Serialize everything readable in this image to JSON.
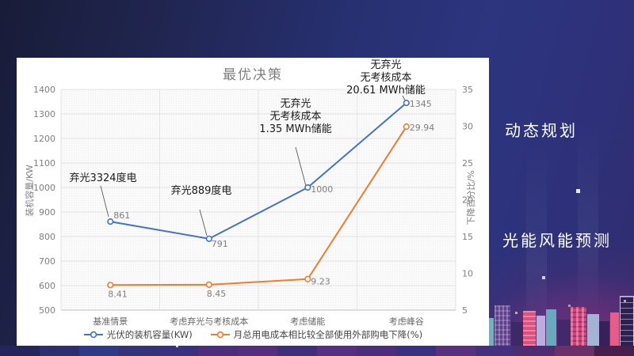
{
  "slide": {
    "side_labels": [
      {
        "text": "动态规划"
      },
      {
        "text": "光能风能预测"
      }
    ]
  },
  "chart_data": {
    "type": "line",
    "title": "最优决策",
    "categories": [
      "基准情景",
      "考虑弃光与考核成本",
      "考虑储能",
      "考虑峰谷"
    ],
    "series": [
      {
        "name": "光伏的装机容量(KW)",
        "axis": "left",
        "color": "#4472c4",
        "values": [
          861,
          791,
          1000,
          1345
        ],
        "labels": [
          "861",
          "791",
          "1000",
          "1345"
        ]
      },
      {
        "name": "月总用电成本相比较全部使用外部购电下降(%)",
        "axis": "right",
        "color": "#ed7d31",
        "values": [
          8.41,
          8.45,
          9.23,
          29.94
        ],
        "labels": [
          "8.41",
          "8.45",
          "9.23",
          "29.94"
        ]
      }
    ],
    "ylabel_left": "装机容量/KW",
    "ylabel_right": "下降百分比/%",
    "ylim_left": [
      500,
      1400
    ],
    "ytick_left": 100,
    "ylim_right": [
      5,
      35
    ],
    "ytick_right": 5,
    "grid": true,
    "legend_position": "bottom",
    "annotations": [
      {
        "lines": [
          "弃光3324度电"
        ],
        "target": "基准情景"
      },
      {
        "lines": [
          "弃光889度电"
        ],
        "target": "考虑弃光与考核成本"
      },
      {
        "lines": [
          "无弃光",
          "无考核成本",
          "1.35 MWh储能"
        ],
        "target": "考虑储能"
      },
      {
        "lines": [
          "无弃光",
          "无考核成本",
          "20.61 MWh储能"
        ],
        "target": "考虑峰谷"
      }
    ]
  }
}
